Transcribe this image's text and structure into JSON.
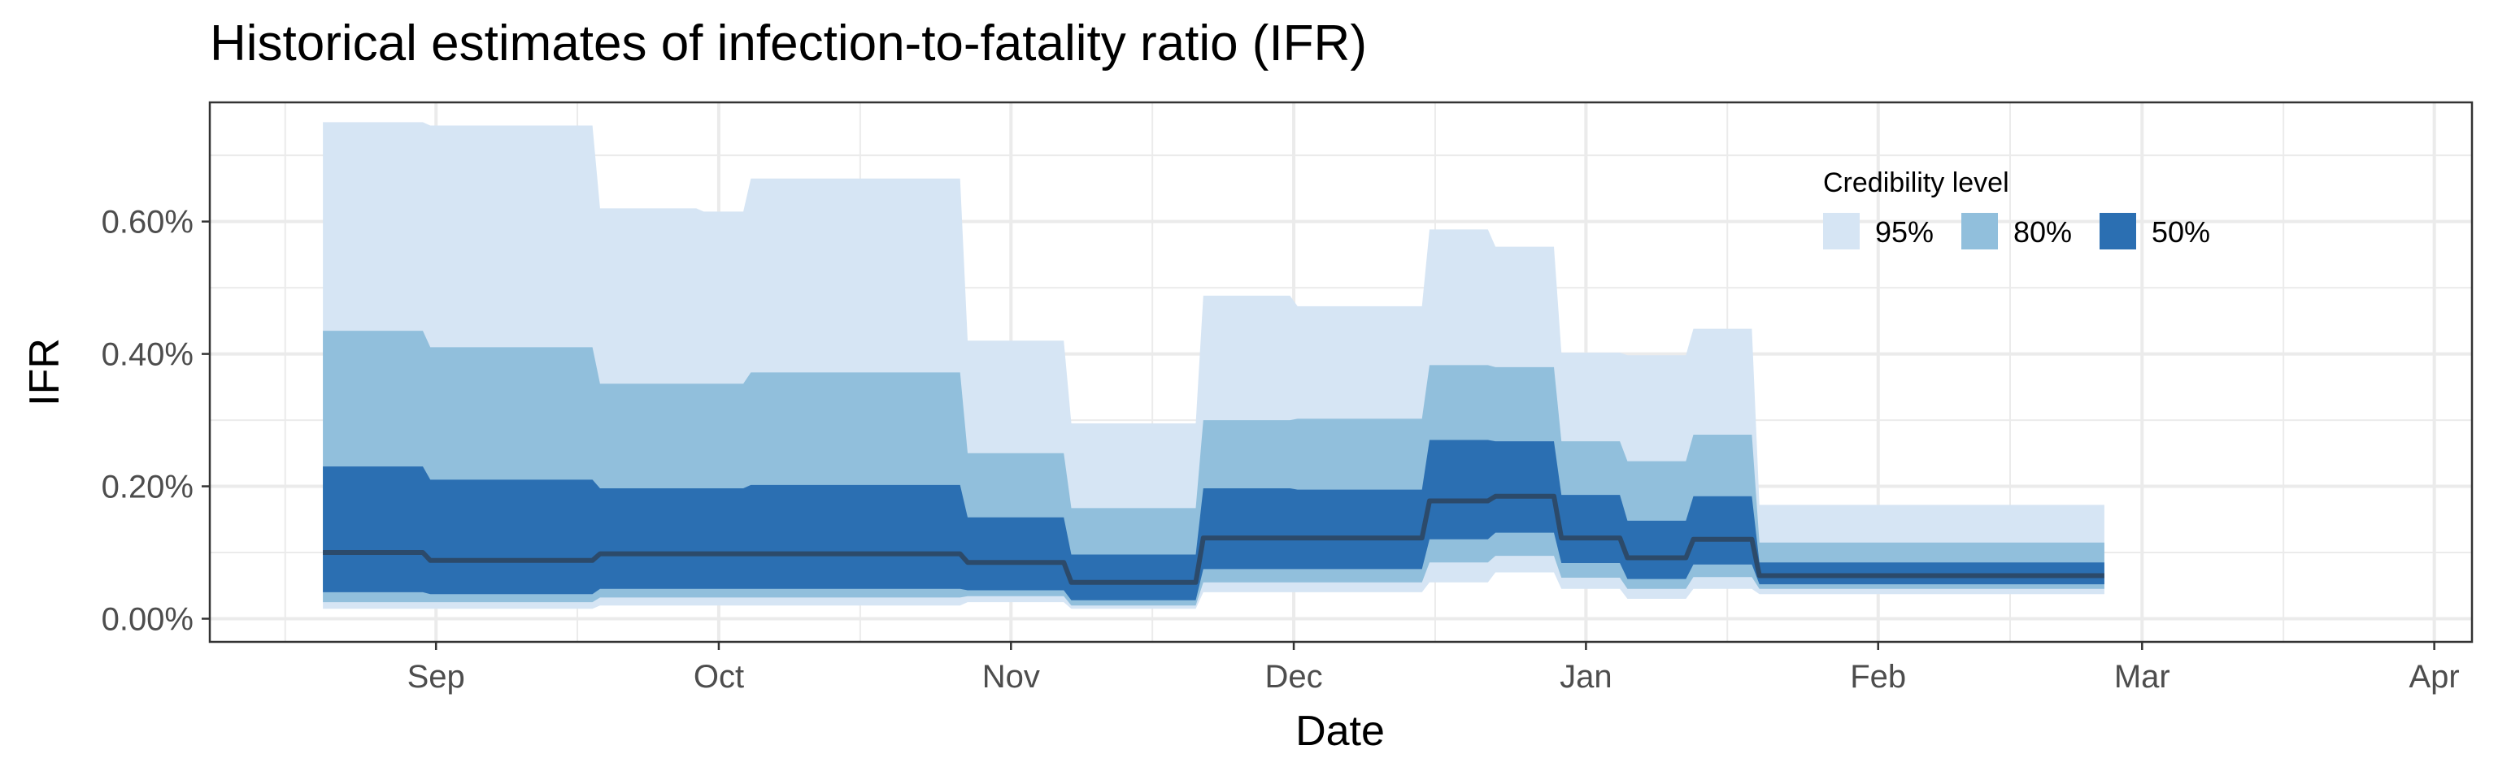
{
  "chart_data": {
    "type": "area",
    "title": "Historical estimates of infection-to-fatality ratio (IFR)",
    "xlabel": "Date",
    "ylabel": "IFR",
    "x_ticks": [
      {
        "label": "Sep",
        "date": "2020-09-01"
      },
      {
        "label": "Oct",
        "date": "2020-10-01"
      },
      {
        "label": "Nov",
        "date": "2020-11-01"
      },
      {
        "label": "Dec",
        "date": "2020-12-01"
      },
      {
        "label": "Jan",
        "date": "2021-01-01"
      },
      {
        "label": "Feb",
        "date": "2021-02-01"
      },
      {
        "label": "Mar",
        "date": "2021-03-01"
      },
      {
        "label": "Apr",
        "date": "2021-04-01"
      }
    ],
    "x_minor_ticks": [
      "2020-08-16",
      "2020-09-16",
      "2020-10-16",
      "2020-11-16",
      "2020-12-16",
      "2021-01-16",
      "2021-02-15",
      "2021-03-16"
    ],
    "y_ticks": [
      {
        "label": "0.00%",
        "value": 0.0
      },
      {
        "label": "0.20%",
        "value": 0.2
      },
      {
        "label": "0.40%",
        "value": 0.4
      },
      {
        "label": "0.60%",
        "value": 0.6
      }
    ],
    "y_minor_ticks": [
      0.1,
      0.3,
      0.5,
      0.7
    ],
    "xlim": [
      "2020-08-08",
      "2021-04-05"
    ],
    "ylim": [
      -0.035,
      0.78
    ],
    "y_unit": "percent",
    "grid": true,
    "legend": {
      "title": "Credibility level",
      "position": "top-right",
      "items": [
        {
          "label": "95%",
          "color": "#d6e5f4"
        },
        {
          "label": "80%",
          "color": "#91bfdc"
        },
        {
          "label": "50%",
          "color": "#2b6fb2"
        }
      ]
    },
    "median_color": "#2c4a6a",
    "colors": {
      "ci95": "#d6e5f4",
      "ci80": "#91bfdc",
      "ci50": "#2b6fb2",
      "grid": "#ebebeb",
      "panel_border": "#333333"
    },
    "series": [
      {
        "start": "2020-08-20",
        "end": "2020-08-31",
        "median": 0.1,
        "lo50": 0.04,
        "hi50": 0.23,
        "lo80": 0.025,
        "hi80": 0.435,
        "lo95": 0.015,
        "hi95": 0.75
      },
      {
        "start": "2020-08-31",
        "end": "2020-09-18",
        "median": 0.088,
        "lo50": 0.037,
        "hi50": 0.21,
        "lo80": 0.025,
        "hi80": 0.41,
        "lo95": 0.015,
        "hi95": 0.745
      },
      {
        "start": "2020-09-18",
        "end": "2020-09-29",
        "median": 0.098,
        "lo50": 0.045,
        "hi50": 0.197,
        "lo80": 0.032,
        "hi80": 0.355,
        "lo95": 0.02,
        "hi95": 0.62
      },
      {
        "start": "2020-09-29",
        "end": "2020-10-04",
        "median": 0.098,
        "lo50": 0.045,
        "hi50": 0.197,
        "lo80": 0.032,
        "hi80": 0.355,
        "lo95": 0.02,
        "hi95": 0.615
      },
      {
        "start": "2020-10-04",
        "end": "2020-10-27",
        "median": 0.098,
        "lo50": 0.045,
        "hi50": 0.202,
        "lo80": 0.032,
        "hi80": 0.372,
        "lo95": 0.02,
        "hi95": 0.665
      },
      {
        "start": "2020-10-27",
        "end": "2020-11-07",
        "median": 0.085,
        "lo50": 0.043,
        "hi50": 0.153,
        "lo80": 0.034,
        "hi80": 0.25,
        "lo95": 0.025,
        "hi95": 0.42
      },
      {
        "start": "2020-11-07",
        "end": "2020-11-21",
        "median": 0.055,
        "lo50": 0.028,
        "hi50": 0.097,
        "lo80": 0.02,
        "hi80": 0.167,
        "lo95": 0.015,
        "hi95": 0.295
      },
      {
        "start": "2020-11-21",
        "end": "2020-12-01",
        "median": 0.122,
        "lo50": 0.075,
        "hi50": 0.197,
        "lo80": 0.055,
        "hi80": 0.3,
        "lo95": 0.04,
        "hi95": 0.488
      },
      {
        "start": "2020-12-01",
        "end": "2020-12-15",
        "median": 0.122,
        "lo50": 0.075,
        "hi50": 0.195,
        "lo80": 0.055,
        "hi80": 0.302,
        "lo95": 0.04,
        "hi95": 0.472
      },
      {
        "start": "2020-12-15",
        "end": "2020-12-22",
        "median": 0.178,
        "lo50": 0.12,
        "hi50": 0.27,
        "lo80": 0.085,
        "hi80": 0.383,
        "lo95": 0.055,
        "hi95": 0.588
      },
      {
        "start": "2020-12-22",
        "end": "2020-12-29",
        "median": 0.185,
        "lo50": 0.13,
        "hi50": 0.268,
        "lo80": 0.095,
        "hi80": 0.38,
        "lo95": 0.07,
        "hi95": 0.562
      },
      {
        "start": "2020-12-29",
        "end": "2021-01-05",
        "median": 0.122,
        "lo50": 0.084,
        "hi50": 0.187,
        "lo80": 0.062,
        "hi80": 0.268,
        "lo95": 0.045,
        "hi95": 0.402
      },
      {
        "start": "2021-01-05",
        "end": "2021-01-12",
        "median": 0.092,
        "lo50": 0.06,
        "hi50": 0.148,
        "lo80": 0.045,
        "hi80": 0.238,
        "lo95": 0.03,
        "hi95": 0.398
      },
      {
        "start": "2021-01-12",
        "end": "2021-01-19",
        "median": 0.12,
        "lo50": 0.082,
        "hi50": 0.185,
        "lo80": 0.063,
        "hi80": 0.278,
        "lo95": 0.045,
        "hi95": 0.438
      },
      {
        "start": "2021-01-19",
        "end": "2021-02-25",
        "median": 0.065,
        "lo50": 0.052,
        "hi50": 0.085,
        "lo80": 0.045,
        "hi80": 0.115,
        "lo95": 0.037,
        "hi95": 0.172
      }
    ]
  }
}
